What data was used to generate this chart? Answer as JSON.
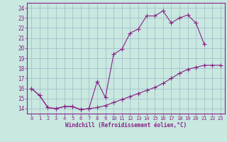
{
  "xlabel": "Windchill (Refroidissement éolien,°C)",
  "background_color": "#c8e8e0",
  "grid_color": "#a0b8c8",
  "line_color": "#882288",
  "xlim": [
    -0.5,
    23.5
  ],
  "ylim": [
    13.5,
    24.5
  ],
  "xticks": [
    0,
    1,
    2,
    3,
    4,
    5,
    6,
    7,
    8,
    9,
    10,
    11,
    12,
    13,
    14,
    15,
    16,
    17,
    18,
    19,
    20,
    21,
    22,
    23
  ],
  "yticks": [
    14,
    15,
    16,
    17,
    18,
    19,
    20,
    21,
    22,
    23,
    24
  ],
  "upper_x": [
    0,
    1,
    2,
    3,
    4,
    5,
    6,
    7,
    8,
    9,
    10,
    11,
    12,
    13,
    14,
    15,
    16,
    17,
    18,
    19,
    20,
    21
  ],
  "upper_y": [
    16.0,
    15.3,
    14.1,
    14.0,
    14.2,
    14.2,
    13.9,
    14.0,
    16.7,
    15.1,
    19.4,
    19.9,
    21.5,
    21.9,
    23.2,
    23.2,
    23.7,
    22.5,
    23.0,
    23.3,
    22.5,
    20.4
  ],
  "lower_x": [
    0,
    1,
    2,
    3,
    4,
    5,
    6,
    7,
    8,
    9,
    10,
    11,
    12,
    13,
    14,
    15,
    16,
    17,
    18,
    19,
    20,
    21,
    22,
    23
  ],
  "lower_y": [
    16.0,
    15.3,
    14.1,
    14.0,
    14.2,
    14.2,
    13.9,
    14.0,
    14.1,
    14.3,
    14.6,
    14.9,
    15.2,
    15.5,
    15.8,
    16.1,
    16.5,
    17.0,
    17.5,
    17.9,
    18.1,
    18.3,
    18.3,
    18.3
  ]
}
